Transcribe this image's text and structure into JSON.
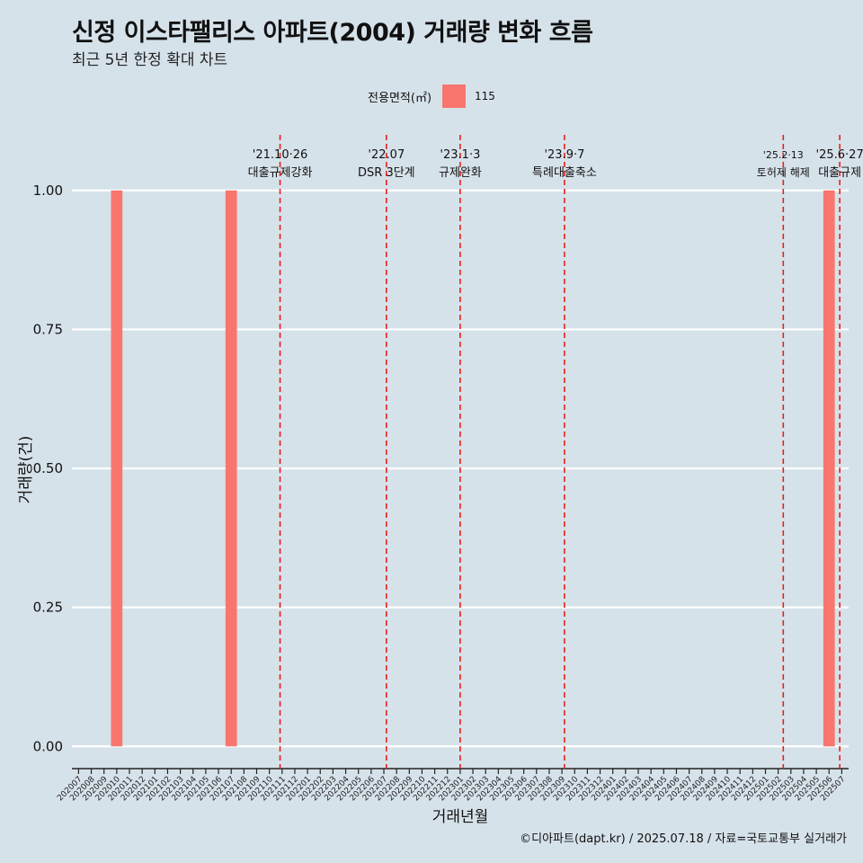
{
  "title": "신정 이스타팰리스 아파트(2004) 거래량 변화 흐름",
  "subtitle": "최근 5년 한정 확대 차트",
  "caption": "©디아파트(dapt.kr) / 2025.07.18 / 자료=국토교통부 실거래가",
  "legend": {
    "title": "전용면적(㎡)",
    "items": [
      {
        "label": "115",
        "color": "#f8766d"
      }
    ]
  },
  "chart_data": {
    "type": "bar",
    "xlabel": "거래년월",
    "ylabel": "거래량(건)",
    "ylim": [
      -0.04,
      1.1
    ],
    "yticks": [
      "0.00",
      "0.25",
      "0.50",
      "0.75",
      "1.00"
    ],
    "ytick_values": [
      0,
      0.25,
      0.5,
      0.75,
      1.0
    ],
    "grid": true,
    "legend_position": "top",
    "categories": [
      "202007",
      "202008",
      "202009",
      "202010",
      "202011",
      "202012",
      "202101",
      "202102",
      "202103",
      "202104",
      "202105",
      "202106",
      "202107",
      "202108",
      "202109",
      "202110",
      "202111",
      "202112",
      "202201",
      "202202",
      "202203",
      "202204",
      "202205",
      "202206",
      "202207",
      "202208",
      "202209",
      "202210",
      "202211",
      "202212",
      "202301",
      "202302",
      "202303",
      "202304",
      "202305",
      "202306",
      "202307",
      "202308",
      "202309",
      "202310",
      "202311",
      "202312",
      "202401",
      "202402",
      "202403",
      "202404",
      "202405",
      "202406",
      "202407",
      "202408",
      "202409",
      "202410",
      "202411",
      "202412",
      "202501",
      "202502",
      "202503",
      "202504",
      "202505",
      "202506",
      "202507"
    ],
    "series": [
      {
        "name": "115",
        "color": "#f8766d",
        "values": [
          0,
          0,
          0,
          1,
          0,
          0,
          0,
          0,
          0,
          0,
          0,
          0,
          1,
          0,
          0,
          0,
          0,
          0,
          0,
          0,
          0,
          0,
          0,
          0,
          0,
          0,
          0,
          0,
          0,
          0,
          0,
          0,
          0,
          0,
          0,
          0,
          0,
          0,
          0,
          0,
          0,
          0,
          0,
          0,
          0,
          0,
          0,
          0,
          0,
          0,
          0,
          0,
          0,
          0,
          0,
          0,
          0,
          0,
          0,
          1,
          0
        ]
      }
    ],
    "events": [
      {
        "month": "202110",
        "offset": 0.84,
        "date": "'21.10·26",
        "label": "대출규제강화"
      },
      {
        "month": "202207",
        "offset": 0.2,
        "date": "'22.07",
        "label": "DSR 3단계"
      },
      {
        "month": "202301",
        "offset": 0.0,
        "date": "'23.1·3",
        "label": "규제완화"
      },
      {
        "month": "202309",
        "offset": 0.2,
        "date": "'23.9·7",
        "label": "특례대출축소"
      },
      {
        "month": "202502",
        "offset": 0.4,
        "date": "'25.2·13",
        "label": "토허제 해제"
      },
      {
        "month": "202506",
        "offset": 0.84,
        "date": "'25.6·27",
        "label": "대출규제"
      }
    ]
  }
}
